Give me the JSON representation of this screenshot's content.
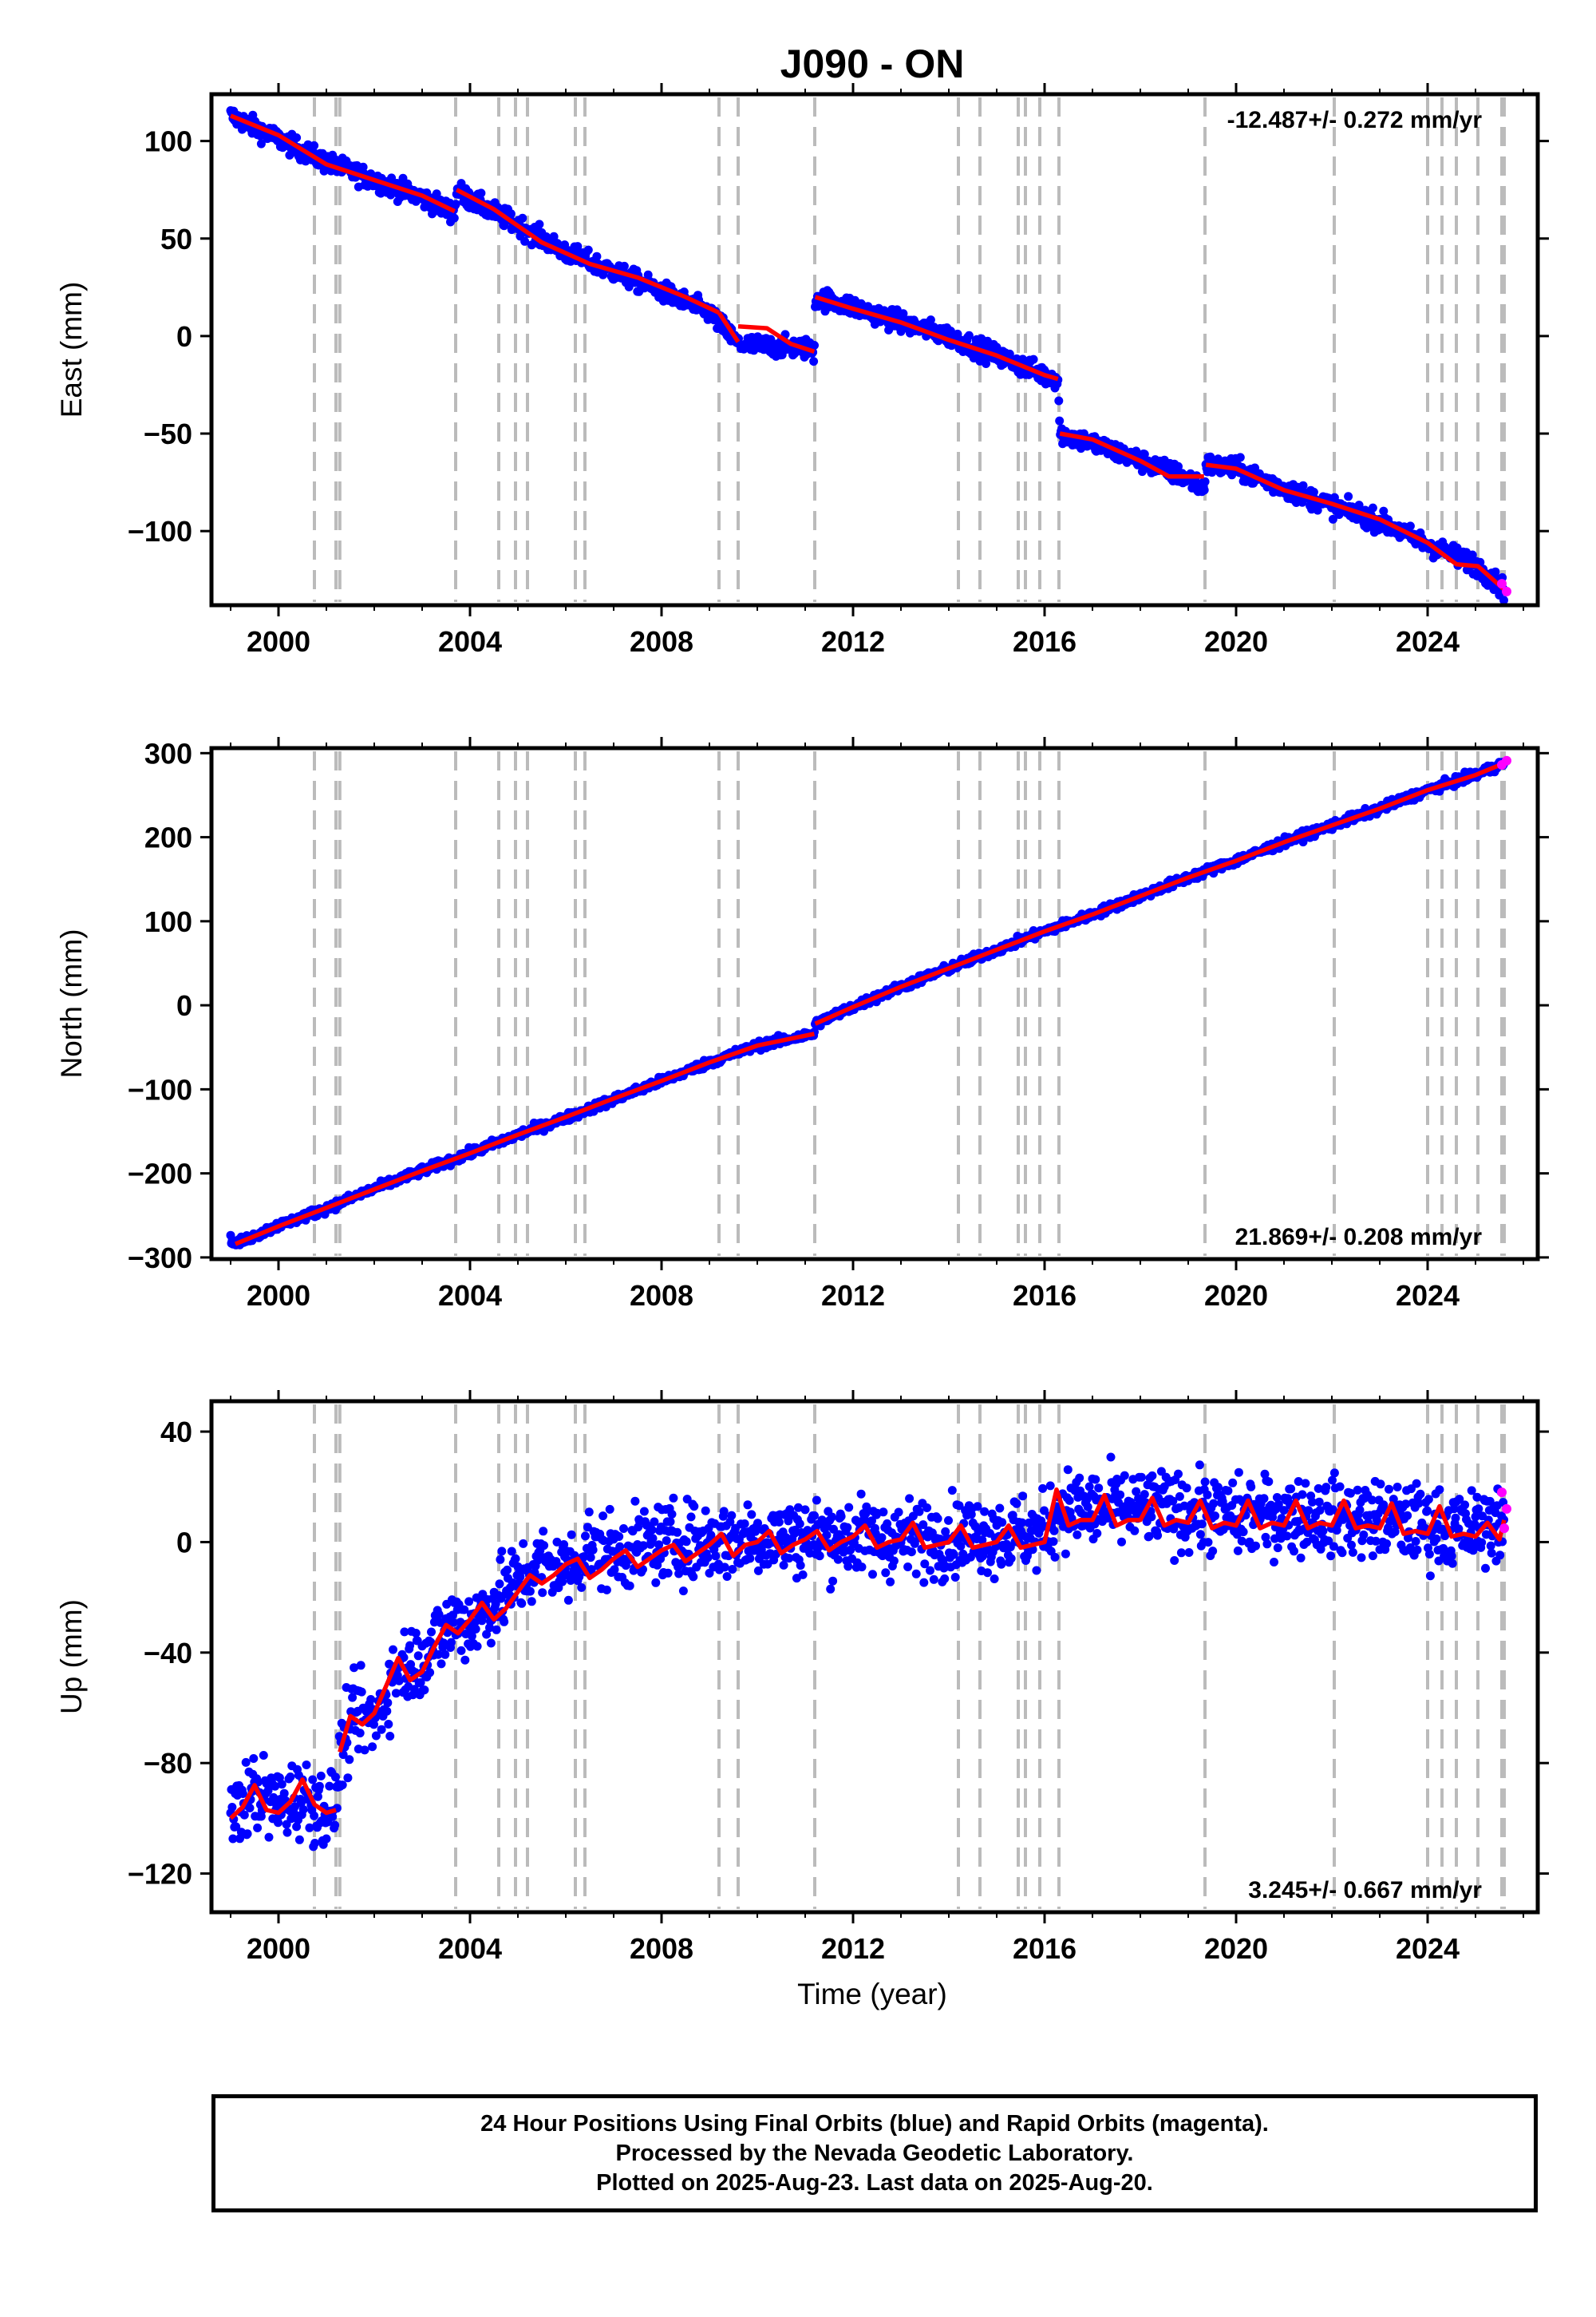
{
  "title": "J090 - ON",
  "colors": {
    "final_orbits": "#0000ff",
    "rapid_orbits": "#ff00ff",
    "model": "#ff0000",
    "events": "#bbbbbb"
  },
  "xlabel": "Time (year)",
  "event_years": [
    2000.75,
    2001.2,
    2001.28,
    2003.7,
    2004.6,
    2004.95,
    2005.2,
    2006.2,
    2006.4,
    2009.2,
    2009.6,
    2011.2,
    2014.2,
    2014.65,
    2015.45,
    2015.6,
    2015.9,
    2016.3,
    2019.35,
    2022.05,
    2024.0,
    2024.3,
    2024.6,
    2025.05,
    2025.55,
    2025.6
  ],
  "chart_data": [
    {
      "type": "scatter",
      "component": "East",
      "ylabel": "East (mm)",
      "rate_text": "-12.487+/- 0.272 mm/yr",
      "xlim": [
        1998.6,
        2026.3
      ],
      "ylim": [
        -138,
        124
      ],
      "xticks": [
        "2000",
        "2004",
        "2008",
        "2012",
        "2016",
        "2020",
        "2024"
      ],
      "yticks": [
        "100",
        "50",
        "0",
        "−50",
        "−100"
      ],
      "ytick_values": [
        100,
        50,
        0,
        -50,
        -100
      ],
      "series": [
        {
          "x": [
            1999.0,
            2000.0,
            2001.0,
            2002.0,
            2003.0,
            2003.68,
            2003.72,
            2004.0,
            2005.0,
            2006.0,
            2007.0,
            2008.0,
            2009.0,
            2009.6,
            2010.0,
            2011.0,
            2011.19,
            2011.21,
            2012.0,
            2013.0,
            2014.0,
            2015.0,
            2016.0,
            2016.28,
            2016.32,
            2017.0,
            2018.0,
            2019.0,
            2019.33,
            2019.37,
            2020.0,
            2021.0,
            2022.0,
            2023.0,
            2024.0,
            2025.0,
            2025.6
          ],
          "y": [
            113,
            101,
            89,
            80,
            71,
            63,
            75,
            70,
            57,
            43,
            33,
            23,
            12,
            -4,
            -5,
            -6,
            -9,
            20,
            15,
            7,
            0,
            -10,
            -20,
            -22,
            -50,
            -55,
            -64,
            -73,
            -78,
            -66,
            -68,
            -78,
            -87,
            -95,
            -107,
            -117,
            -130
          ]
        }
      ],
      "model": [
        {
          "x": [
            1999.0,
            2000.0,
            2001.0,
            2002.0,
            2003.0,
            2003.68
          ],
          "y": [
            113,
            103,
            88,
            80,
            72,
            64
          ]
        },
        {
          "x": [
            2003.72,
            2004.5,
            2005.5,
            2006.5,
            2007.5,
            2008.5,
            2009.2
          ],
          "y": [
            75,
            65,
            48,
            37,
            30,
            20,
            12
          ]
        },
        {
          "x": [
            2009.2,
            2009.6
          ],
          "y": [
            12,
            -3
          ]
        },
        {
          "x": [
            2009.6,
            2010.2,
            2010.7,
            2011.19
          ],
          "y": [
            5,
            4,
            -4,
            -8
          ]
        },
        {
          "x": [
            2011.21,
            2012.0,
            2013.0,
            2014.0,
            2015.0,
            2016.0,
            2016.28
          ],
          "y": [
            20,
            14,
            7,
            -2,
            -10,
            -20,
            -22
          ]
        },
        {
          "x": [
            2016.32,
            2017.0,
            2018.0,
            2018.6,
            2019.33
          ],
          "y": [
            -50,
            -53,
            -64,
            -72,
            -72
          ]
        },
        {
          "x": [
            2019.37,
            2020.0,
            2021.0,
            2022.0,
            2023.0,
            2024.0,
            2024.6,
            2025.05,
            2025.6
          ],
          "y": [
            -66,
            -68,
            -79,
            -86,
            -94,
            -106,
            -117,
            -118,
            -130
          ]
        }
      ],
      "rapid_x": [
        2025.55,
        2025.65
      ],
      "rapid_y": [
        -127,
        -131
      ]
    },
    {
      "type": "scatter",
      "component": "North",
      "ylabel": "North (mm)",
      "rate_text": "21.869+/- 0.208 mm/yr",
      "xlim": [
        1998.6,
        2026.3
      ],
      "ylim": [
        -302,
        306
      ],
      "xticks": [
        "2000",
        "2004",
        "2008",
        "2012",
        "2016",
        "2020",
        "2024"
      ],
      "yticks": [
        "300",
        "200",
        "100",
        "0",
        "−100",
        "−200",
        "−300"
      ],
      "ytick_values": [
        300,
        200,
        100,
        0,
        -100,
        -200,
        -300
      ],
      "series": [
        {
          "x": [
            1999.0,
            1999.1,
            2000.0,
            2001.0,
            2002.0,
            2003.0,
            2004.0,
            2005.0,
            2006.0,
            2007.0,
            2008.0,
            2009.0,
            2010.0,
            2011.0,
            2011.19,
            2011.21,
            2012.0,
            2013.0,
            2014.0,
            2015.0,
            2016.0,
            2017.0,
            2018.0,
            2019.0,
            2020.0,
            2021.0,
            2022.0,
            2023.0,
            2024.0,
            2025.0,
            2025.6
          ],
          "y": [
            -278,
            -284,
            -262,
            -242,
            -218,
            -197,
            -176,
            -154,
            -134,
            -112,
            -90,
            -68,
            -48,
            -36,
            -34,
            -22,
            -2,
            22,
            44,
            66,
            88,
            108,
            130,
            152,
            172,
            194,
            214,
            234,
            256,
            274,
            288
          ]
        }
      ],
      "model": [
        {
          "x": [
            1999.1,
            2000.0,
            2001.0,
            2002.0,
            2003.0,
            2004.0,
            2005.0,
            2006.0,
            2007.0,
            2008.0,
            2009.0,
            2010.0,
            2011.19
          ],
          "y": [
            -284,
            -263,
            -241,
            -219,
            -197,
            -176,
            -154,
            -133,
            -111,
            -90,
            -68,
            -48,
            -34
          ]
        },
        {
          "x": [
            2011.21,
            2012.0,
            2013.0,
            2014.0,
            2015.0,
            2016.0,
            2017.0,
            2018.0,
            2019.0,
            2020.0,
            2021.0,
            2022.0,
            2023.0,
            2024.0,
            2025.0,
            2025.6
          ],
          "y": [
            -22,
            -2,
            22,
            44,
            66,
            88,
            108,
            130,
            152,
            172,
            194,
            214,
            234,
            256,
            274,
            288
          ]
        }
      ],
      "rapid_x": [
        2025.55,
        2025.65
      ],
      "rapid_y": [
        286,
        291
      ]
    },
    {
      "type": "scatter",
      "component": "Up",
      "ylabel": "Up (mm)",
      "rate_text": "3.245+/- 0.667 mm/yr",
      "xlim": [
        1998.6,
        2026.3
      ],
      "ylim": [
        -134,
        51
      ],
      "xticks": [
        "2000",
        "2004",
        "2008",
        "2012",
        "2016",
        "2020",
        "2024"
      ],
      "yticks": [
        "40",
        "0",
        "−40",
        "−80",
        "−120"
      ],
      "ytick_values": [
        40,
        0,
        -40,
        -80,
        -120
      ],
      "series": [
        {
          "x": [
            1999.0,
            1999.5,
            2000.0,
            2000.5,
            2001.0,
            2001.2,
            2001.28,
            2001.6,
            2002.0,
            2002.5,
            2003.0,
            2003.7,
            2004.0,
            2004.5,
            2005.0,
            2005.5,
            2006.0,
            2006.5,
            2007.0,
            2008.0,
            2009.0,
            2010.0,
            2011.0,
            2012.0,
            2013.0,
            2014.0,
            2015.0,
            2016.0,
            2016.3,
            2017.0,
            2018.0,
            2019.0,
            2020.0,
            2021.0,
            2022.0,
            2023.0,
            2024.0,
            2025.0,
            2025.6
          ],
          "y": [
            -100,
            -90,
            -95,
            -92,
            -97,
            -95,
            -78,
            -62,
            -65,
            -45,
            -42,
            -28,
            -30,
            -22,
            -14,
            -8,
            -10,
            -2,
            -4,
            0,
            0,
            2,
            2,
            2,
            1,
            2,
            3,
            3,
            12,
            12,
            12,
            11,
            9,
            10,
            9,
            8,
            6,
            4,
            10
          ]
        }
      ],
      "model": [
        {
          "x": [
            1999.0,
            1999.25,
            1999.5,
            1999.75,
            2000.0,
            2000.25,
            2000.5,
            2000.75,
            2001.0,
            2001.2
          ],
          "y": [
            -100,
            -96,
            -88,
            -97,
            -98,
            -94,
            -86,
            -95,
            -98,
            -97
          ]
        },
        {
          "x": [
            2001.28,
            2001.5,
            2001.75,
            2002.0,
            2002.25,
            2002.5,
            2002.75,
            2003.0,
            2003.25,
            2003.5,
            2003.75,
            2004.0,
            2004.25,
            2004.5,
            2004.75,
            2005.0,
            2005.25,
            2005.5,
            2005.75,
            2006.0,
            2006.25,
            2006.5,
            2006.75,
            2007.0,
            2007.25,
            2007.5,
            2007.75,
            2008.0,
            2008.25,
            2008.5,
            2008.75,
            2009.0,
            2009.25,
            2009.5,
            2009.75,
            2010.0,
            2010.25,
            2010.5,
            2010.75,
            2011.0,
            2011.25,
            2011.5,
            2011.75,
            2012.0,
            2012.25,
            2012.5,
            2012.75,
            2013.0,
            2013.25,
            2013.5,
            2013.75,
            2014.0,
            2014.25,
            2014.5,
            2014.75,
            2015.0,
            2015.25,
            2015.5,
            2015.75,
            2016.0,
            2016.25,
            2016.5,
            2016.75,
            2017.0,
            2017.25,
            2017.5,
            2017.75,
            2018.0,
            2018.25,
            2018.5,
            2018.75,
            2019.0,
            2019.25,
            2019.5,
            2019.75,
            2020.0,
            2020.25,
            2020.5,
            2020.75,
            2021.0,
            2021.25,
            2021.5,
            2021.75,
            2022.0,
            2022.25,
            2022.5,
            2022.75,
            2023.0,
            2023.25,
            2023.5,
            2023.75,
            2024.0,
            2024.25,
            2024.5,
            2024.75,
            2025.0,
            2025.25,
            2025.5,
            2025.6
          ],
          "y": [
            -76,
            -63,
            -66,
            -62,
            -52,
            -42,
            -50,
            -47,
            -38,
            -30,
            -33,
            -28,
            -22,
            -28,
            -24,
            -18,
            -12,
            -15,
            -12,
            -8,
            -6,
            -13,
            -10,
            -6,
            -3,
            -9,
            -6,
            -3,
            -1,
            -7,
            -4,
            -1,
            3,
            -5,
            -1,
            0,
            4,
            -4,
            -1,
            1,
            4,
            -3,
            0,
            2,
            6,
            -2,
            0,
            1,
            7,
            -2,
            -1,
            0,
            6,
            -2,
            -1,
            0,
            6,
            -2,
            -1,
            0,
            19,
            6,
            8,
            8,
            17,
            6,
            8,
            8,
            16,
            6,
            8,
            7,
            15,
            5,
            7,
            6,
            15,
            5,
            7,
            6,
            15,
            5,
            7,
            6,
            15,
            5,
            6,
            5,
            14,
            3,
            4,
            3,
            13,
            2,
            3,
            2,
            7,
            1,
            8
          ]
        }
      ],
      "rapid_x": [
        2025.55,
        2025.6,
        2025.65
      ],
      "rapid_y": [
        18,
        5,
        12
      ]
    }
  ],
  "footer": {
    "line1": "24 Hour Positions Using Final Orbits (blue) and Rapid Orbits (magenta).",
    "line2": "Processed by the Nevada Geodetic Laboratory.",
    "line3": "Plotted on 2025-Aug-23. Last data on 2025-Aug-20."
  }
}
